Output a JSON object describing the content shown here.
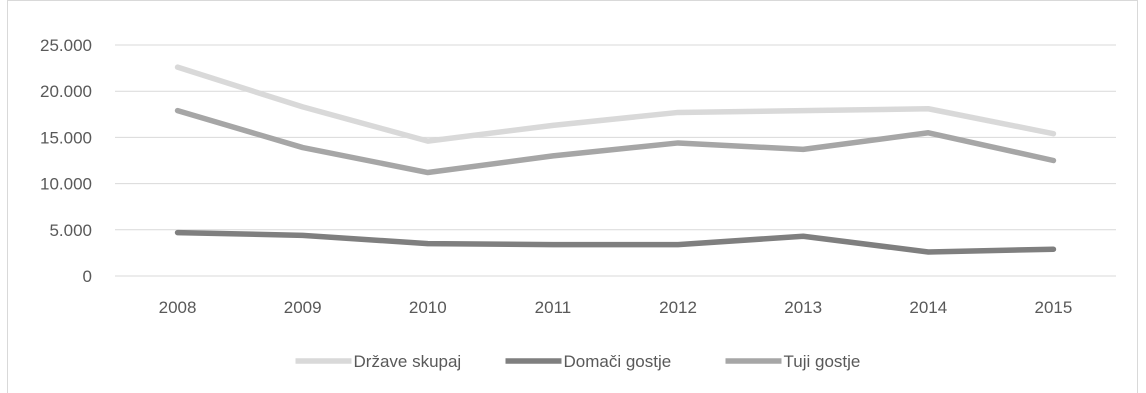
{
  "chart_data": {
    "type": "line",
    "categories": [
      "2008",
      "2009",
      "2010",
      "2011",
      "2012",
      "2013",
      "2014",
      "2015"
    ],
    "series": [
      {
        "name": "Države skupaj",
        "color": "#d9d9d9",
        "values": [
          22600,
          18300,
          14600,
          16300,
          17700,
          17900,
          18100,
          15400
        ]
      },
      {
        "name": "Domači gostje",
        "color": "#7f7f7f",
        "values": [
          4700,
          4400,
          3500,
          3400,
          3400,
          4300,
          2600,
          2900
        ]
      },
      {
        "name": "Tuji gostje",
        "color": "#a6a6a6",
        "values": [
          17900,
          13900,
          11200,
          13000,
          14400,
          13700,
          15500,
          12500
        ]
      }
    ],
    "yticks": [
      "0",
      "5.000",
      "10.000",
      "15.000",
      "20.000",
      "25.000"
    ],
    "ytick_values": [
      0,
      5000,
      10000,
      15000,
      20000,
      25000
    ],
    "ylim": [
      0,
      25000
    ],
    "grid": true,
    "legend_position": "bottom",
    "title": "",
    "xlabel": "",
    "ylabel": ""
  }
}
